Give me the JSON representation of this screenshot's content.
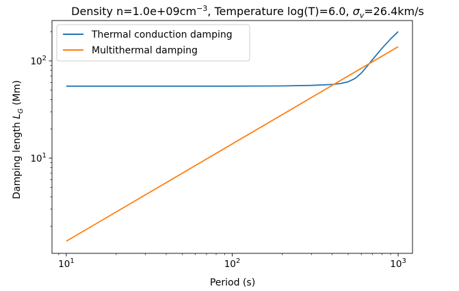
{
  "chart_data": {
    "type": "line",
    "title": {
      "prefix": "Density n=1.0e+09cm",
      "density_exponent": "−3",
      "middle": ", Temperature log(T)=6.0, ",
      "sigma_symbol": "σ",
      "sigma_subscript": "v",
      "suffix": "=26.4km/s"
    },
    "xlabel": "Period (s)",
    "ylabel": {
      "main": "Damping length ",
      "symbol": "L",
      "subscript": "G",
      "unit": " (Mm)"
    },
    "xscale": "log",
    "yscale": "log",
    "xlim": [
      8.2,
      1220
    ],
    "ylim": [
      1.05,
      260
    ],
    "x_ticks": [
      {
        "value": 10,
        "base": "10",
        "exp": "1"
      },
      {
        "value": 100,
        "base": "10",
        "exp": "2"
      },
      {
        "value": 1000,
        "base": "10",
        "exp": "3"
      }
    ],
    "y_ticks": [
      {
        "value": 10,
        "base": "10",
        "exp": "1"
      },
      {
        "value": 100,
        "base": "10",
        "exp": "2"
      }
    ],
    "grid": false,
    "legend_position": "top-left",
    "series": [
      {
        "name": "Thermal conduction damping",
        "color": "#1f77b4",
        "x": [
          10,
          50,
          100,
          200,
          300,
          400,
          450,
          500,
          550,
          600,
          650,
          700,
          800,
          900,
          1000
        ],
        "y": [
          55,
          55,
          55,
          55.3,
          56,
          57.2,
          58.5,
          61,
          66,
          75,
          88,
          103,
          135,
          168,
          200
        ]
      },
      {
        "name": "Multithermal damping",
        "color": "#ff7f0e",
        "x": [
          10,
          1000
        ],
        "y": [
          1.4,
          140
        ]
      }
    ]
  }
}
